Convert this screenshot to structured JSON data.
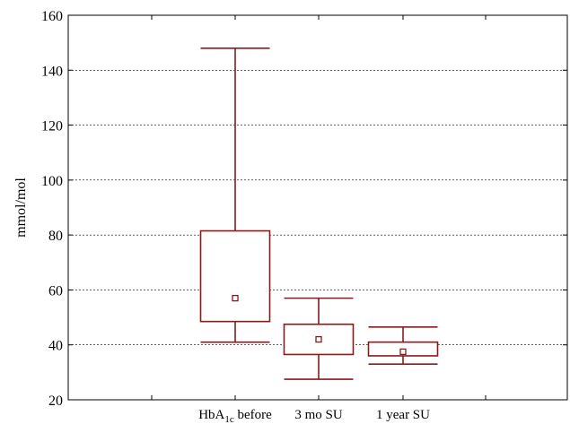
{
  "chart_data": {
    "type": "box",
    "ylabel": "mmol/mol",
    "ylim": [
      20,
      160
    ],
    "yticks": [
      20,
      40,
      60,
      80,
      100,
      120,
      140,
      160
    ],
    "grid": "horizontal dashed",
    "box_color": "#8b1a1a",
    "categories": [
      {
        "label": "HbA",
        "sub": "1c",
        "suffix": " before"
      },
      {
        "label": "3 mo SU",
        "sub": "",
        "suffix": ""
      },
      {
        "label": "1 year SU",
        "sub": "",
        "suffix": ""
      }
    ],
    "boxes": [
      {
        "min": 41,
        "q1": 48.5,
        "median": 57,
        "q3": 81.5,
        "max": 148
      },
      {
        "min": 27.5,
        "q1": 36.5,
        "median": 42,
        "q3": 47.5,
        "max": 57
      },
      {
        "min": 33,
        "q1": 36,
        "median": 37.5,
        "q3": 41,
        "max": 46.5
      }
    ]
  }
}
